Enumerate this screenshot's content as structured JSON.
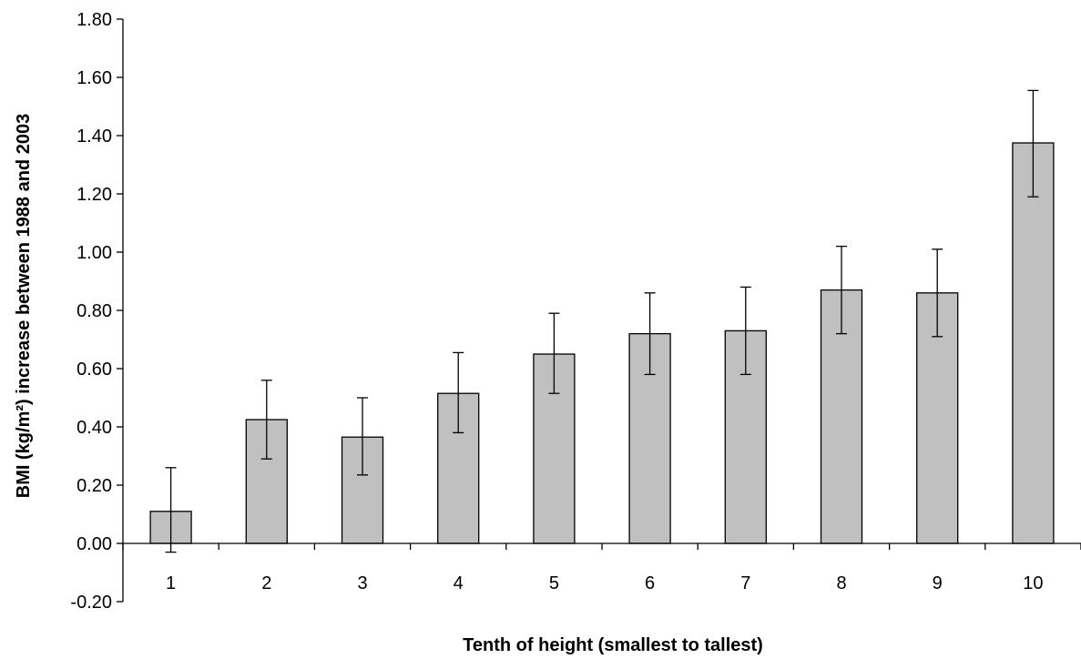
{
  "chart_data": {
    "type": "bar",
    "xlabel": "Tenth of height (smallest to tallest)",
    "ylabel": "BMI (kg/m²) increase between 1988 and 2003",
    "ylim": [
      -0.2,
      1.8
    ],
    "yticks": [
      -0.2,
      0.0,
      0.2,
      0.4,
      0.6,
      0.8,
      1.0,
      1.2,
      1.4,
      1.6,
      1.8
    ],
    "ytick_labels": [
      "-0.20",
      "0.00",
      "0.20",
      "0.40",
      "0.60",
      "0.80",
      "1.00",
      "1.20",
      "1.40",
      "1.60",
      "1.80"
    ],
    "categories": [
      "1",
      "2",
      "3",
      "4",
      "5",
      "6",
      "7",
      "8",
      "9",
      "10"
    ],
    "values": [
      0.11,
      0.425,
      0.365,
      0.515,
      0.65,
      0.72,
      0.73,
      0.87,
      0.86,
      1.375
    ],
    "error_low": [
      -0.03,
      0.29,
      0.235,
      0.38,
      0.515,
      0.58,
      0.58,
      0.72,
      0.71,
      1.19
    ],
    "error_high": [
      0.26,
      0.56,
      0.5,
      0.655,
      0.79,
      0.86,
      0.88,
      1.02,
      1.01,
      1.555
    ],
    "grid": false,
    "legend": "none"
  }
}
